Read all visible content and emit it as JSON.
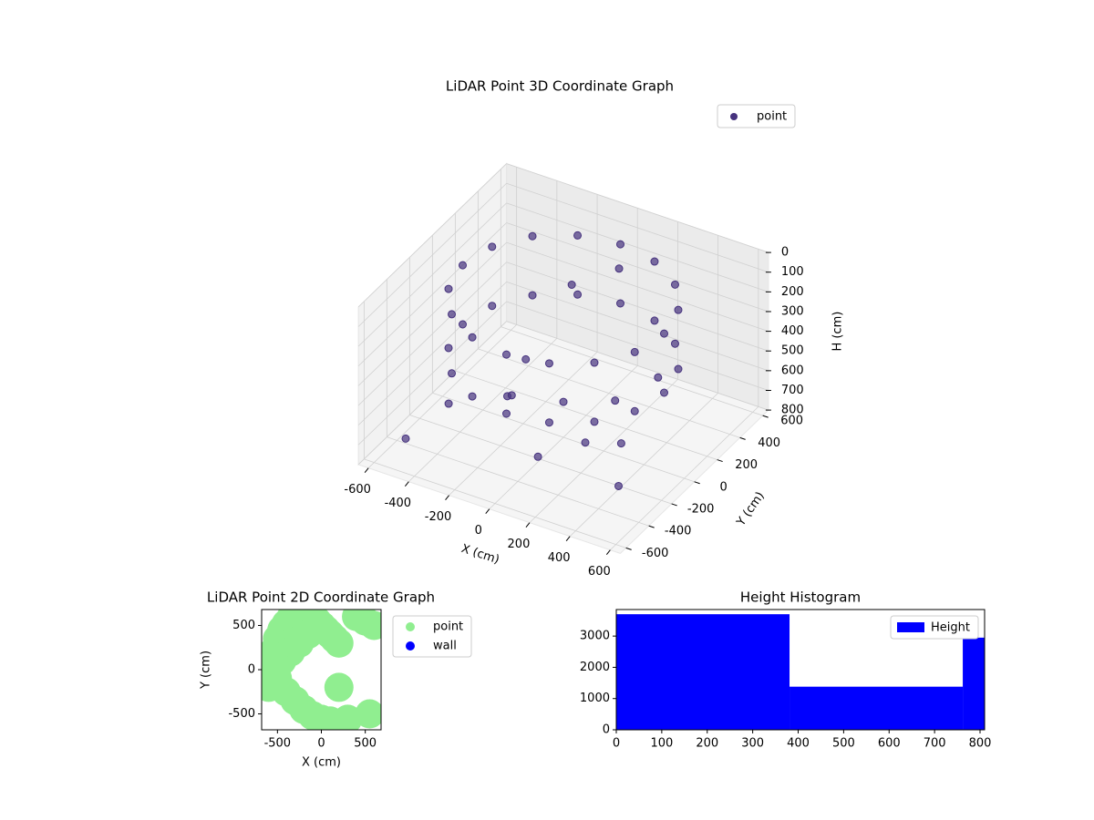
{
  "chart_data": [
    {
      "type": "scatter3d",
      "title": "LiDAR Point 3D Coordinate Graph",
      "xlabel": "X (cm)",
      "ylabel": "Y (cm)",
      "zlabel": "H (cm)",
      "xlim": [
        -650,
        650
      ],
      "ylim": [
        -650,
        650
      ],
      "zlim": [
        800,
        0
      ],
      "xticks": [
        -600,
        -400,
        -200,
        0,
        200,
        400,
        600
      ],
      "yticks": [
        -600,
        -400,
        -200,
        0,
        200,
        400,
        600
      ],
      "zticks": [
        0,
        100,
        200,
        300,
        400,
        500,
        600,
        700,
        800
      ],
      "legend": "upper right",
      "series": [
        {
          "name": "point",
          "color": "#46327e",
          "x": [
            500,
            462,
            354,
            191,
            0,
            -191,
            -354,
            -462,
            -500,
            -462,
            -354,
            -191,
            0,
            191,
            354,
            462,
            500,
            462,
            354,
            191,
            0,
            -191,
            -354,
            -462,
            -500,
            -462,
            -354,
            -191,
            0,
            191,
            354,
            462,
            -400,
            -200,
            0,
            200,
            400,
            -300,
            100,
            300,
            -500,
            500,
            -100,
            250,
            -250,
            50
          ],
          "y": [
            0,
            191,
            354,
            462,
            500,
            462,
            354,
            191,
            0,
            -191,
            -354,
            -462,
            -500,
            -462,
            -354,
            -191,
            0,
            191,
            354,
            462,
            500,
            462,
            354,
            191,
            0,
            -191,
            -354,
            -462,
            -500,
            -462,
            -354,
            -191,
            -300,
            -100,
            0,
            100,
            -200,
            200,
            -400,
            300,
            -500,
            -400,
            250,
            -250,
            -50,
            400
          ],
          "z": [
            100,
            100,
            100,
            100,
            100,
            100,
            100,
            100,
            100,
            100,
            100,
            100,
            100,
            100,
            100,
            100,
            400,
            400,
            400,
            400,
            400,
            400,
            400,
            400,
            400,
            400,
            400,
            400,
            400,
            400,
            400,
            400,
            600,
            600,
            620,
            600,
            580,
            620,
            640,
            560,
            700,
            650,
            200,
            600,
            650,
            150
          ]
        }
      ]
    },
    {
      "type": "scatter",
      "title": "LiDAR Point 2D Coordinate Graph",
      "xlabel": "X (cm)",
      "ylabel": "Y (cm)",
      "xlim": [
        -680,
        680
      ],
      "ylim": [
        -680,
        680
      ],
      "xticks": [
        -500,
        0,
        500
      ],
      "yticks": [
        -500,
        0,
        500
      ],
      "legend": "outside right",
      "series": [
        {
          "name": "point",
          "color": "#90ee90",
          "x": [
            -600,
            -550,
            -500,
            -450,
            -400,
            -350,
            -300,
            -250,
            -200,
            -150,
            -100,
            -50,
            0,
            50,
            100,
            150,
            200,
            -500,
            -400,
            -300,
            -200,
            -100,
            0,
            100,
            -450,
            -350,
            -250,
            -150,
            400,
            500,
            600,
            550,
            300,
            200,
            -600,
            -550
          ],
          "y": [
            0,
            200,
            350,
            450,
            520,
            580,
            600,
            620,
            640,
            600,
            580,
            550,
            500,
            450,
            400,
            350,
            300,
            -100,
            -250,
            -350,
            -450,
            -520,
            -560,
            -580,
            100,
            200,
            300,
            400,
            600,
            550,
            500,
            -500,
            -560,
            -200,
            -200,
            150
          ]
        },
        {
          "name": "wall",
          "color": "#0000ff",
          "x": [],
          "y": []
        }
      ]
    },
    {
      "type": "histogram",
      "title": "Height Histogram",
      "bins": [
        0,
        381,
        762,
        810
      ],
      "values": [
        3700,
        1380,
        2950
      ],
      "xlim": [
        0,
        810
      ],
      "ylim": [
        0,
        3850
      ],
      "xticks": [
        0,
        100,
        200,
        300,
        400,
        500,
        600,
        700,
        800
      ],
      "yticks": [
        0,
        1000,
        2000,
        3000
      ],
      "legend": "upper right",
      "series_name": "Height",
      "color": "#0000ff"
    }
  ]
}
